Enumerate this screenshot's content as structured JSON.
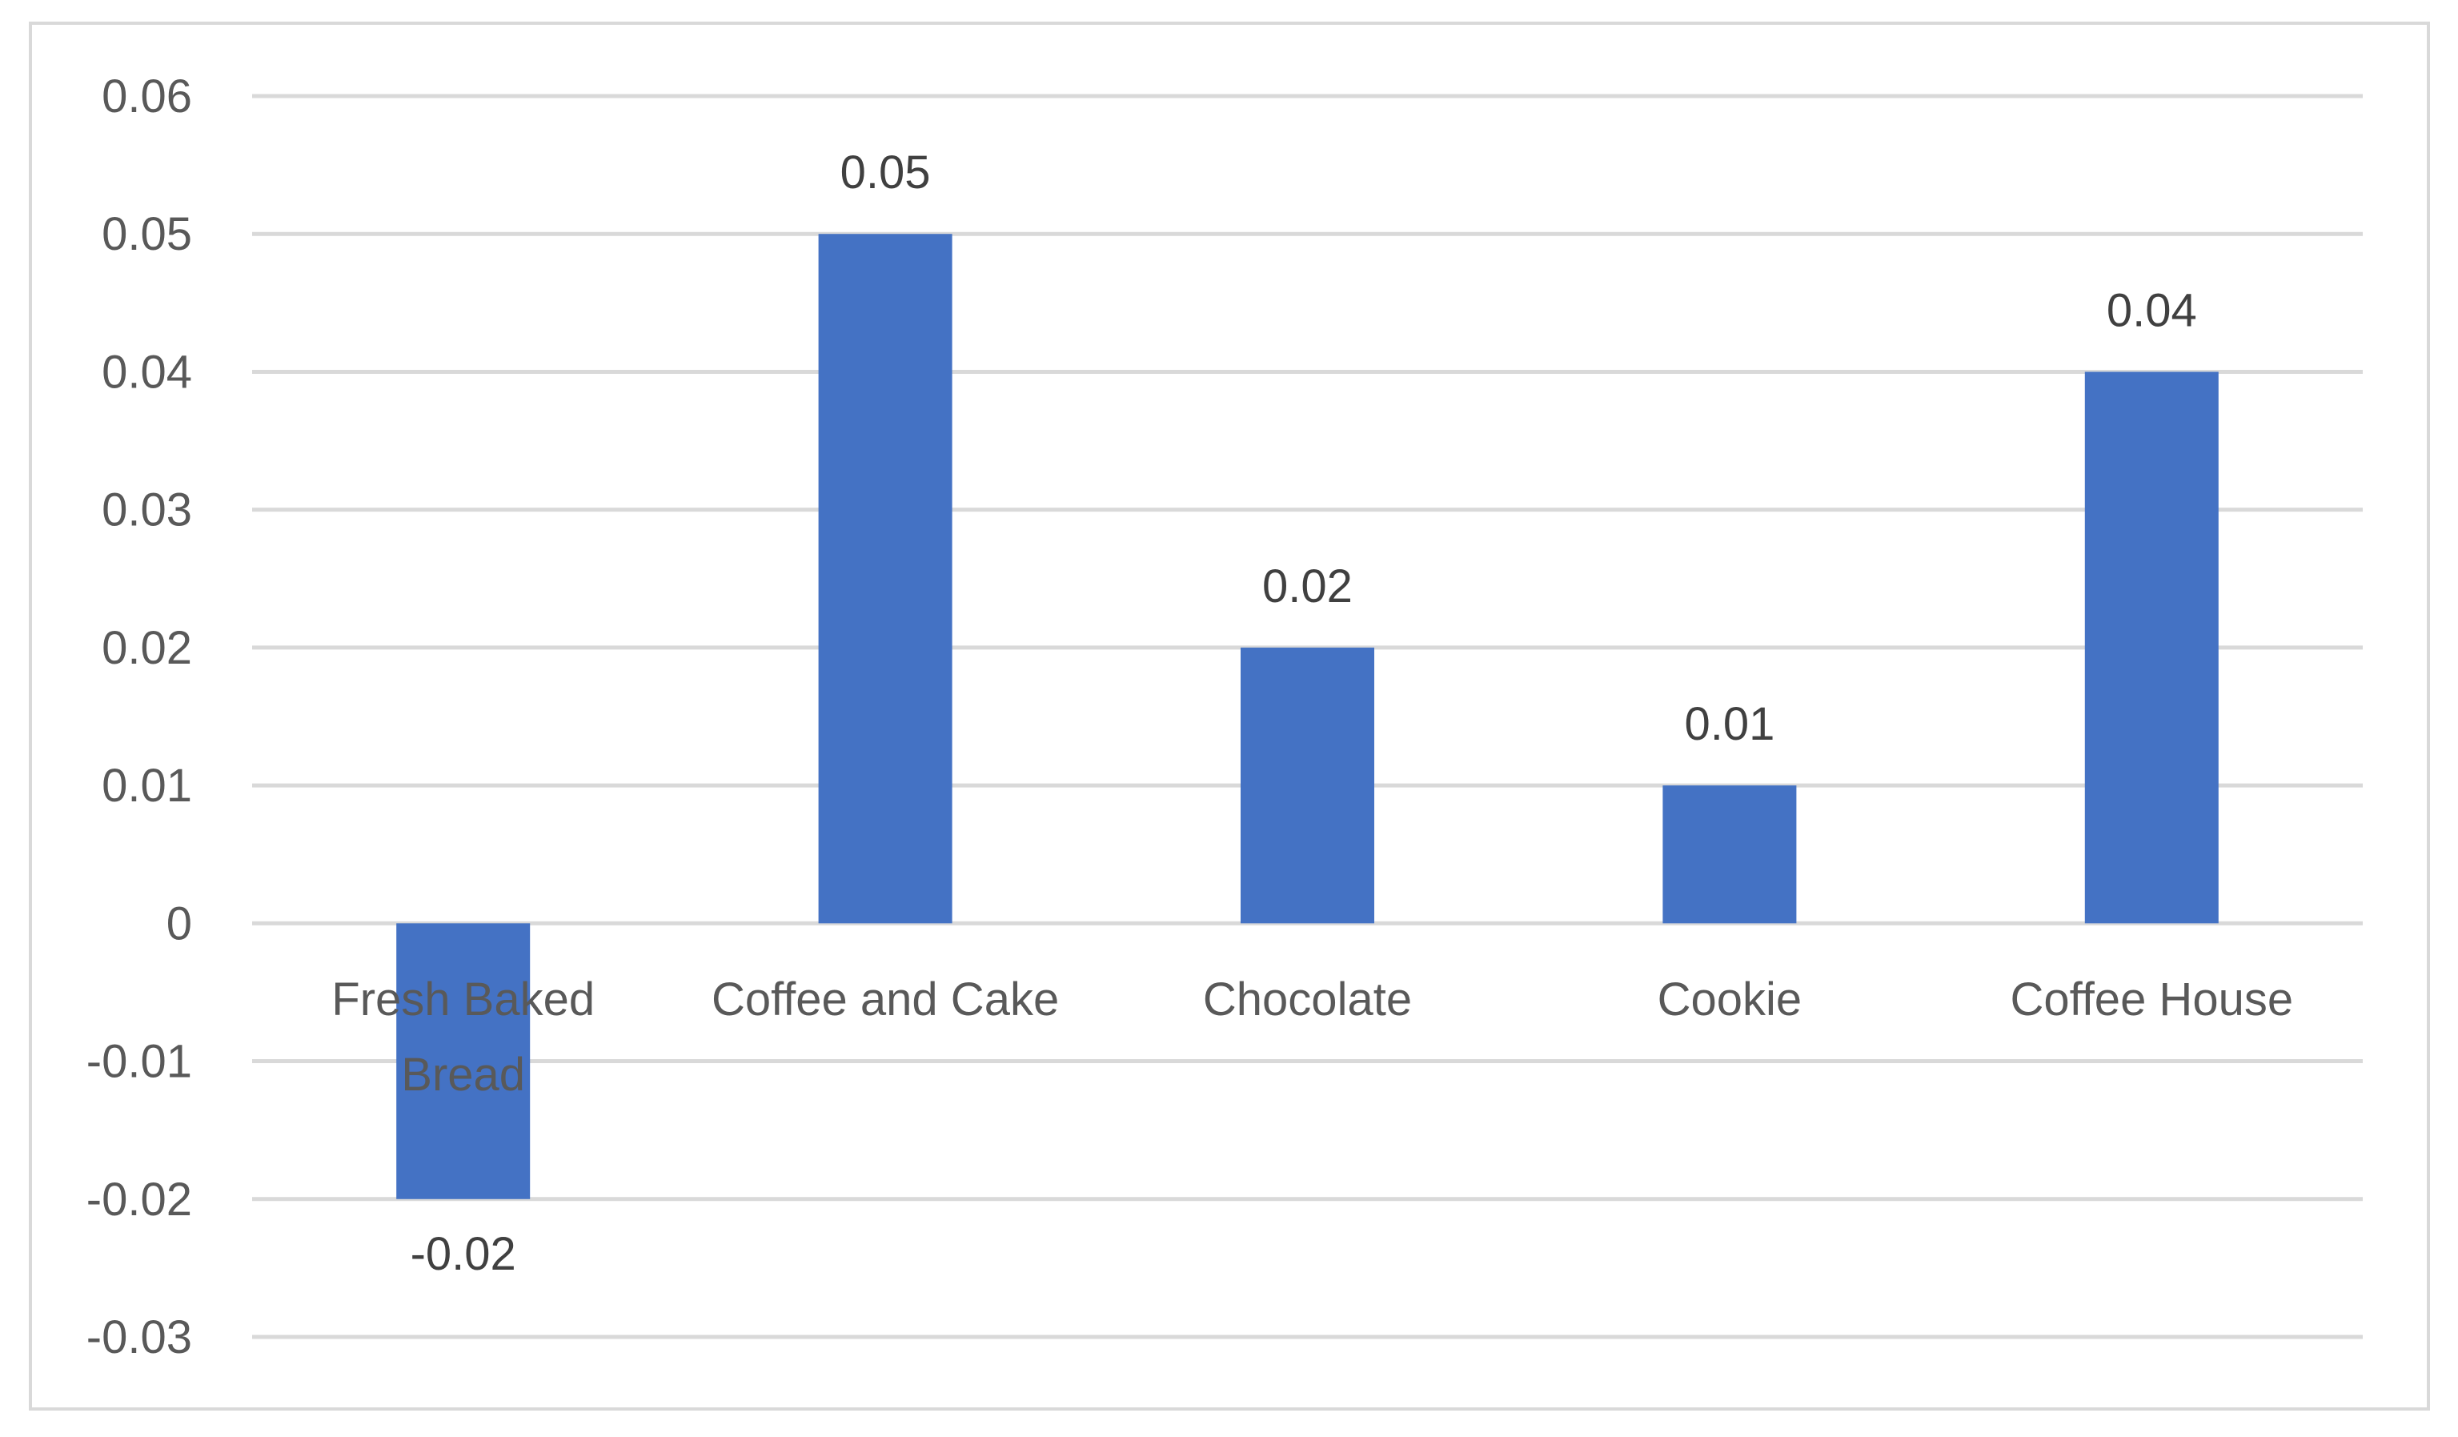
{
  "chart_data": {
    "type": "bar",
    "categories": [
      "Fresh Baked Bread",
      "Coffee and Cake",
      "Chocolate",
      "Cookie",
      "Coffee House"
    ],
    "values": [
      -0.02,
      0.05,
      0.02,
      0.01,
      0.04
    ],
    "data_labels": [
      "-0.02",
      "0.05",
      "0.02",
      "0.01",
      "0.04"
    ],
    "title": "",
    "xlabel": "",
    "ylabel": "",
    "ylim": [
      -0.03,
      0.06
    ],
    "yticks": [
      0.06,
      0.05,
      0.04,
      0.03,
      0.02,
      0.01,
      0,
      -0.01,
      -0.02,
      -0.03
    ],
    "ytick_labels": [
      "0.06",
      "0.05",
      "0.04",
      "0.03",
      "0.02",
      "0.01",
      "0",
      "-0.01",
      "-0.02",
      "-0.03"
    ],
    "grid": true,
    "legend": "none",
    "bar_color": "#4472c4"
  }
}
